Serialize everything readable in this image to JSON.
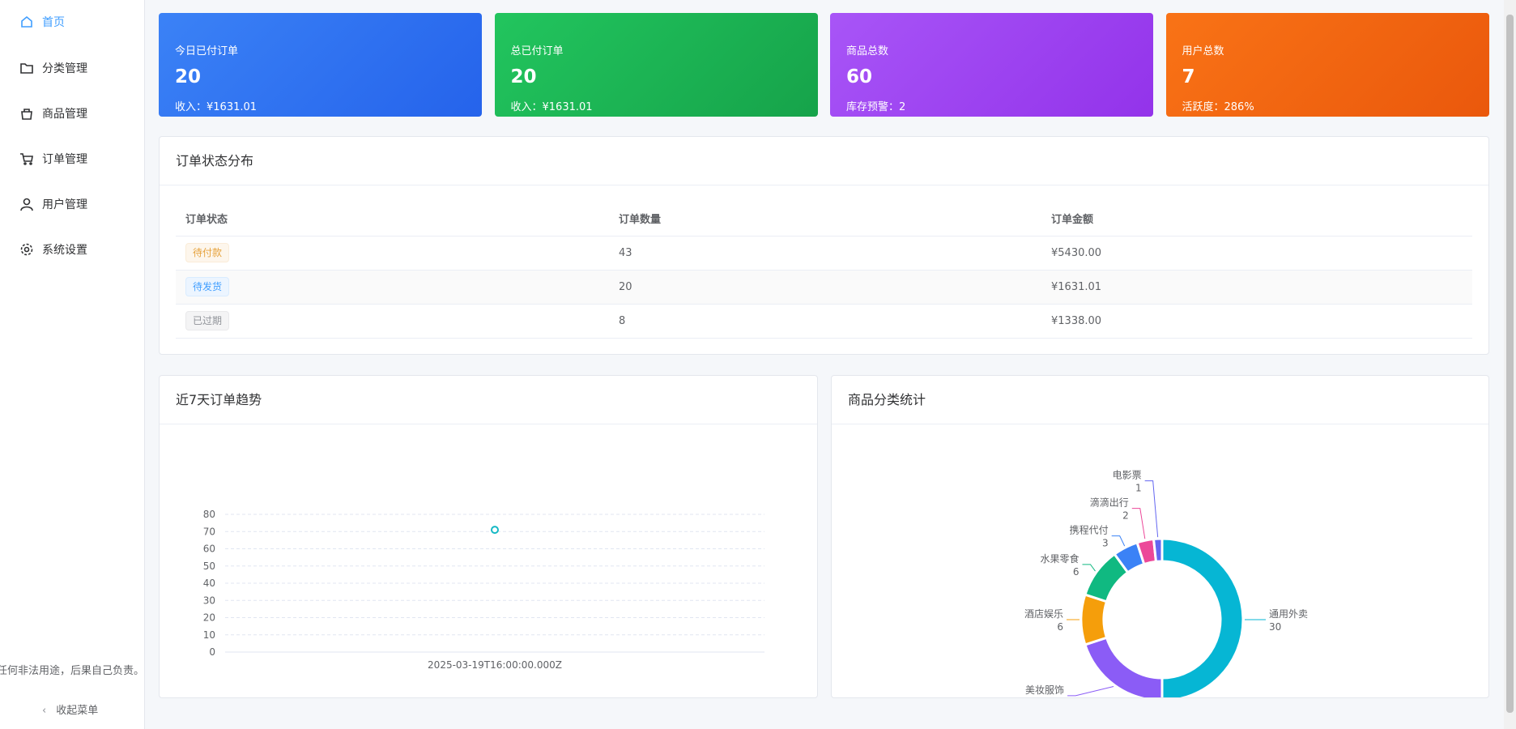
{
  "sidebar": {
    "menu": [
      "首页",
      "分类管理",
      "商品管理",
      "订单管理",
      "用户管理",
      "系统设置"
    ],
    "note": "任何非法用途，后果自己负责。",
    "collapse": "收起菜单"
  },
  "stats": [
    {
      "label": "今日已付订单",
      "value": 20,
      "sub": "收入：¥1631.01"
    },
    {
      "label": "总已付订单",
      "value": 20,
      "sub": "收入：¥1631.01"
    },
    {
      "label": "商品总数",
      "value": 60,
      "sub": "库存预警：2"
    },
    {
      "label": "用户总数",
      "value": 7,
      "sub": "活跃度：286%"
    }
  ],
  "order_status": {
    "title": "订单状态分布",
    "columns": [
      "订单状态",
      "订单数量",
      "订单金额"
    ],
    "rows": [
      [
        "待付款",
        43,
        "¥5430.00"
      ],
      [
        "待发货",
        20,
        "¥1631.01"
      ],
      [
        "已过期",
        8,
        "¥1338.00"
      ]
    ]
  },
  "chart_data": [
    {
      "type": "line",
      "title": "近7天订单趋势",
      "categories": [
        "2025-03-19T16:00:00.000Z"
      ],
      "values": [
        71
      ],
      "color": "#14b8c4",
      "ylim": [
        0,
        80
      ],
      "yticks": [
        0,
        10,
        20,
        30,
        40,
        50,
        60,
        70,
        80
      ],
      "grid": true
    },
    {
      "type": "pie",
      "title": "商品分类统计",
      "categories": [
        "通用外卖",
        "美妆服饰",
        "酒店娱乐",
        "水果零食",
        "携程代付",
        "滴滴出行",
        "电影票"
      ],
      "values": [
        30,
        12,
        6,
        6,
        3,
        2,
        1
      ],
      "colors": [
        "#06b6d4",
        "#8b5cf6",
        "#f59e0b",
        "#10b981",
        "#3b82f6",
        "#ec4899",
        "#6366f1"
      ]
    }
  ]
}
